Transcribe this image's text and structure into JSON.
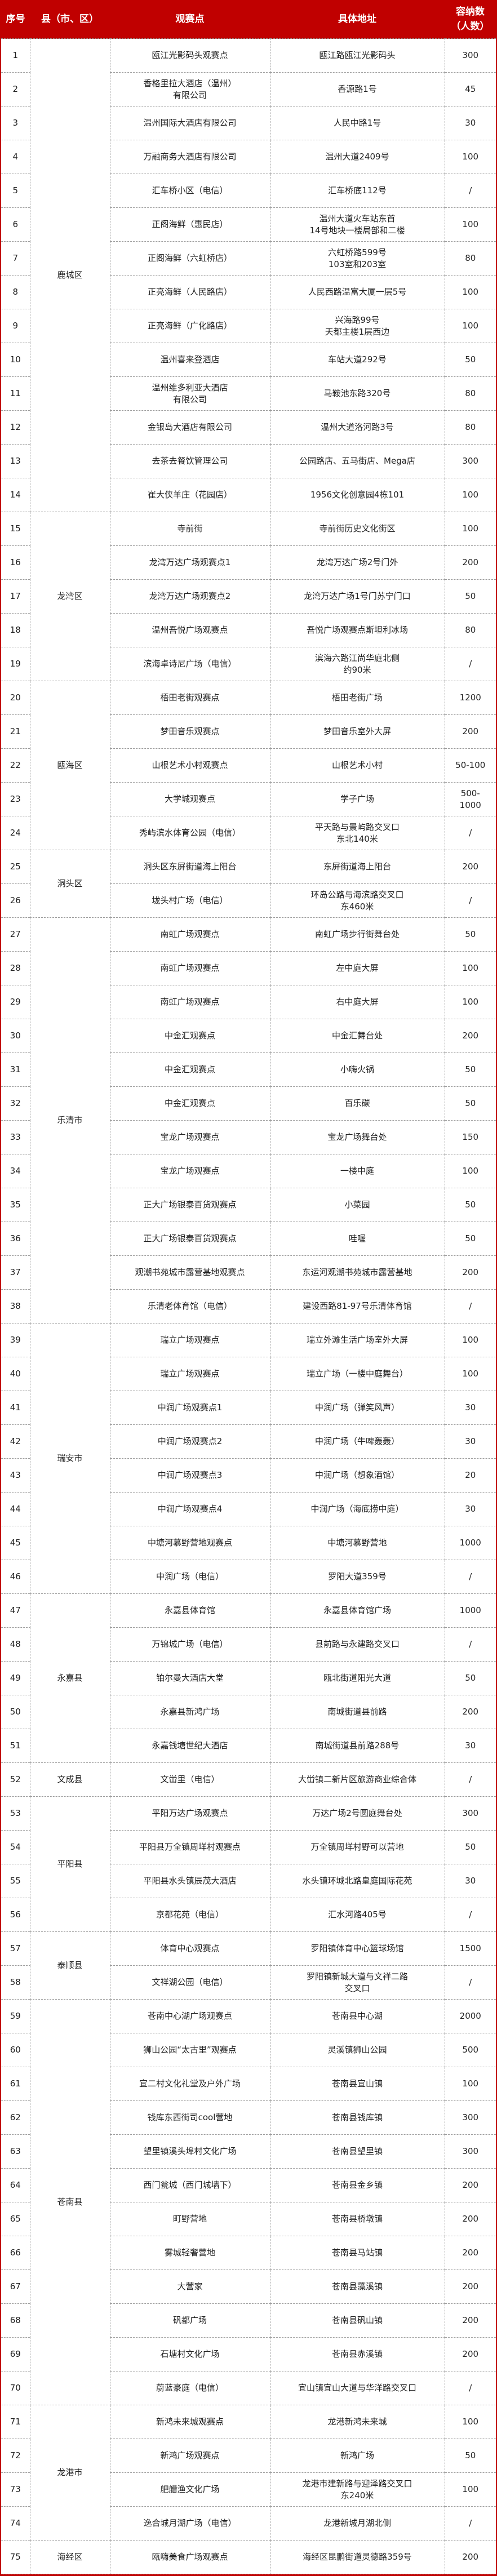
{
  "header": {
    "seq": "序号",
    "district": "县（市、区）",
    "venue": "观赛点",
    "address": "具体地址",
    "capacity": "容纳数\n（人数）"
  },
  "colors": {
    "header_bg": "#c00000",
    "header_text": "#ffffff",
    "border": "#9a9a9a"
  },
  "groups": [
    {
      "district": "鹿城区",
      "rows": [
        {
          "no": "1",
          "venue": "瓯江光影码头观赛点",
          "address": "瓯江路瓯江光影码头",
          "capacity": "300"
        },
        {
          "no": "2",
          "venue": "香格里拉大酒店（温州）\n有限公司",
          "address": "香源路1号",
          "capacity": "45"
        },
        {
          "no": "3",
          "venue": "温州国际大酒店有限公司",
          "address": "人民中路1号",
          "capacity": "30"
        },
        {
          "no": "4",
          "venue": "万融商务大酒店有限公司",
          "address": "温州大道2409号",
          "capacity": "100"
        },
        {
          "no": "5",
          "venue": "汇车桥小区（电信）",
          "address": "汇车桥底112号",
          "capacity": "/"
        },
        {
          "no": "6",
          "venue": "正阁海鲜（惠民店）",
          "address": "温州大道火车站东首\n14号地块一楼局部和二楼",
          "capacity": "100"
        },
        {
          "no": "7",
          "venue": "正阁海鲜（六虹桥店）",
          "address": "六虹桥路599号\n103室和203室",
          "capacity": "80"
        },
        {
          "no": "8",
          "venue": "正亮海鲜（人民路店）",
          "address": "人民西路温富大厦一层5号",
          "capacity": "100"
        },
        {
          "no": "9",
          "venue": "正亮海鲜（广化路店）",
          "address": "兴海路99号\n天都主楼1层西边",
          "capacity": "100"
        },
        {
          "no": "10",
          "venue": "温州喜来登酒店",
          "address": "车站大道292号",
          "capacity": "50"
        },
        {
          "no": "11",
          "venue": "温州维多利亚大酒店\n有限公司",
          "address": "马鞍池东路320号",
          "capacity": "80"
        },
        {
          "no": "12",
          "venue": "金银岛大酒店有限公司",
          "address": "温州大道洛河路3号",
          "capacity": "80"
        },
        {
          "no": "13",
          "venue": "去茶去餐饮管理公司",
          "address": "公园路店、五马街店、Mega店",
          "capacity": "300"
        },
        {
          "no": "14",
          "venue": "崔大侠羊庄（花园店）",
          "address": "1956文化创意园4栋101",
          "capacity": "100"
        }
      ]
    },
    {
      "district": "龙湾区",
      "rows": [
        {
          "no": "15",
          "venue": "寺前街",
          "address": "寺前街历史文化街区",
          "capacity": "100"
        },
        {
          "no": "16",
          "venue": "龙湾万达广场观赛点1",
          "address": "龙湾万达广场2号门外",
          "capacity": "200"
        },
        {
          "no": "17",
          "venue": "龙湾万达广场观赛点2",
          "address": "龙湾万达广场1号门苏宁门口",
          "capacity": "50"
        },
        {
          "no": "18",
          "venue": "温州吾悦广场观赛点",
          "address": "吾悦广场观赛点斯坦利冰场",
          "capacity": "80"
        },
        {
          "no": "19",
          "venue": "滨海卓诗尼广场（电信）",
          "address": "滨海六路江尚华庭北侧\n约90米",
          "capacity": "/"
        }
      ]
    },
    {
      "district": "瓯海区",
      "rows": [
        {
          "no": "20",
          "venue": "梧田老街观赛点",
          "address": "梧田老街广场",
          "capacity": "1200"
        },
        {
          "no": "21",
          "venue": "梦田音乐观赛点",
          "address": "梦田音乐室外大屏",
          "capacity": "200"
        },
        {
          "no": "22",
          "venue": "山根艺术小村观赛点",
          "address": "山根艺术小村",
          "capacity": "50-100"
        },
        {
          "no": "23",
          "venue": "大学城观赛点",
          "address": "学子广场",
          "capacity": "500-\n1000"
        },
        {
          "no": "24",
          "venue": "秀屿滨水体育公园（电信）",
          "address": "平天路与景屿路交叉口\n东北140米",
          "capacity": "/"
        }
      ]
    },
    {
      "district": "洞头区",
      "rows": [
        {
          "no": "25",
          "venue": "洞头区东屏街道海上阳台",
          "address": "东屏街道海上阳台",
          "capacity": "200"
        },
        {
          "no": "26",
          "venue": "垅头村广场（电信）",
          "address": "环岛公路与海滨路交叉口\n东460米",
          "capacity": "/"
        }
      ]
    },
    {
      "district": "乐清市",
      "rows": [
        {
          "no": "27",
          "venue": "南虹广场观赛点",
          "address": "南虹广场步行街舞台处",
          "capacity": "50"
        },
        {
          "no": "28",
          "venue": "南虹广场观赛点",
          "address": "左中庭大屏",
          "capacity": "100"
        },
        {
          "no": "29",
          "venue": "南虹广场观赛点",
          "address": "右中庭大屏",
          "capacity": "100"
        },
        {
          "no": "30",
          "venue": "中金汇观赛点",
          "address": "中金汇舞台处",
          "capacity": "200"
        },
        {
          "no": "31",
          "venue": "中金汇观赛点",
          "address": "小嗨火锅",
          "capacity": "50"
        },
        {
          "no": "32",
          "venue": "中金汇观赛点",
          "address": "百乐碳",
          "capacity": "50"
        },
        {
          "no": "33",
          "venue": "宝龙广场观赛点",
          "address": "宝龙广场舞台处",
          "capacity": "150"
        },
        {
          "no": "34",
          "venue": "宝龙广场观赛点",
          "address": "一楼中庭",
          "capacity": "100"
        },
        {
          "no": "35",
          "venue": "正大广场银泰百货观赛点",
          "address": "小菜园",
          "capacity": "50"
        },
        {
          "no": "36",
          "venue": "正大广场银泰百货观赛点",
          "address": "哇喔",
          "capacity": "50"
        },
        {
          "no": "37",
          "venue": "观潮书苑城市露营基地观赛点",
          "address": "东运河观潮书苑城市露营基地",
          "capacity": "200"
        },
        {
          "no": "38",
          "venue": "乐清老体育馆（电信）",
          "address": "建设西路81-97号乐清体育馆",
          "capacity": "/"
        }
      ]
    },
    {
      "district": "瑞安市",
      "rows": [
        {
          "no": "39",
          "venue": "瑞立广场观赛点",
          "address": "瑞立外滩生活广场室外大屏",
          "capacity": "100"
        },
        {
          "no": "40",
          "venue": "瑞立广场观赛点",
          "address": "瑞立广场（一楼中庭舞台）",
          "capacity": "100"
        },
        {
          "no": "41",
          "venue": "中润广场观赛点1",
          "address": "中润广场（弹笑风声）",
          "capacity": "30"
        },
        {
          "no": "42",
          "venue": "中润广场观赛点2",
          "address": "中润广场（牛啤轰轰）",
          "capacity": "30"
        },
        {
          "no": "43",
          "venue": "中润广场观赛点3",
          "address": "中润广场（想象酒馆）",
          "capacity": "20"
        },
        {
          "no": "44",
          "venue": "中润广场观赛点4",
          "address": "中润广场（海底捞中庭）",
          "capacity": "30"
        },
        {
          "no": "45",
          "venue": "中塘河慕野营地观赛点",
          "address": "中塘河慕野营地",
          "capacity": "1000"
        },
        {
          "no": "46",
          "venue": "中润广场（电信）",
          "address": "罗阳大道359号",
          "capacity": "/"
        }
      ]
    },
    {
      "district": "永嘉县",
      "rows": [
        {
          "no": "47",
          "venue": "永嘉县体育馆",
          "address": "永嘉县体育馆广场",
          "capacity": "1000"
        },
        {
          "no": "48",
          "venue": "万锦城广场（电信）",
          "address": "县前路与永建路交叉口",
          "capacity": "/"
        },
        {
          "no": "49",
          "venue": "铂尔曼大酒店大堂",
          "address": "瓯北街道阳光大道",
          "capacity": "50"
        },
        {
          "no": "50",
          "venue": "永嘉县新鸿广场",
          "address": "南城街道县前路",
          "capacity": "200"
        },
        {
          "no": "51",
          "venue": "永嘉钱塘世纪大酒店",
          "address": "南城街道县前路288号",
          "capacity": "30"
        }
      ]
    },
    {
      "district": "文成县",
      "rows": [
        {
          "no": "52",
          "venue": "文峃里（电信）",
          "address": "大峃镇二新片区旅游商业综合体",
          "capacity": "/"
        }
      ]
    },
    {
      "district": "平阳县",
      "rows": [
        {
          "no": "53",
          "venue": "平阳万达广场观赛点",
          "address": "万达广场2号圆庭舞台处",
          "capacity": "300"
        },
        {
          "no": "54",
          "venue": "平阳县万全镇周垟村观赛点",
          "address": "万全镇周垟村野可以营地",
          "capacity": "50"
        },
        {
          "no": "55",
          "venue": "平阳县水头镇辰茂大酒店",
          "address": "水头镇环城北路皇庭国际花苑",
          "capacity": "30"
        },
        {
          "no": "56",
          "venue": "京都花苑（电信）",
          "address": "汇水河路405号",
          "capacity": "/"
        }
      ]
    },
    {
      "district": "泰顺县",
      "rows": [
        {
          "no": "57",
          "venue": "体育中心观赛点",
          "address": "罗阳镇体育中心篮球场馆",
          "capacity": "1500"
        },
        {
          "no": "58",
          "venue": "文祥湖公园（电信）",
          "address": "罗阳镇新城大道与文祥二路\n交叉口",
          "capacity": "/"
        }
      ]
    },
    {
      "district": "苍南县",
      "rows": [
        {
          "no": "59",
          "venue": "苍南中心湖广场观赛点",
          "address": "苍南县中心湖",
          "capacity": "2000"
        },
        {
          "no": "60",
          "venue": "狮山公园“太古里”观赛点",
          "address": "灵溪镇狮山公园",
          "capacity": "500"
        },
        {
          "no": "61",
          "venue": "宜二村文化礼堂及户外广场",
          "address": "苍南县宜山镇",
          "capacity": "100"
        },
        {
          "no": "62",
          "venue": "钱库东西街司cool营地",
          "address": "苍南县钱库镇",
          "capacity": "300"
        },
        {
          "no": "63",
          "venue": "望里镇溪头埠村文化广场",
          "address": "苍南县望里镇",
          "capacity": "300"
        },
        {
          "no": "64",
          "venue": "西门瓮城（西门城墙下）",
          "address": "苍南县金乡镇",
          "capacity": "200"
        },
        {
          "no": "65",
          "venue": "町野营地",
          "address": "苍南县桥墩镇",
          "capacity": "200"
        },
        {
          "no": "66",
          "venue": "雾城轻奢营地",
          "address": "苍南县马站镇",
          "capacity": "200"
        },
        {
          "no": "67",
          "venue": "大营家",
          "address": "苍南县藻溪镇",
          "capacity": "200"
        },
        {
          "no": "68",
          "venue": "矾都广场",
          "address": "苍南县矾山镇",
          "capacity": "200"
        },
        {
          "no": "69",
          "venue": "石塘村文化广场",
          "address": "苍南县赤溪镇",
          "capacity": "200"
        },
        {
          "no": "70",
          "venue": "蔚蓝豪庭（电信）",
          "address": "宜山镇宜山大道与华洋路交叉口",
          "capacity": "/"
        }
      ]
    },
    {
      "district": "龙港市",
      "rows": [
        {
          "no": "71",
          "venue": "新鸿未来城观赛点",
          "address": "龙港新鸿未来城",
          "capacity": "100"
        },
        {
          "no": "72",
          "venue": "新鸿广场观赛点",
          "address": "新鸿广场",
          "capacity": "50"
        },
        {
          "no": "73",
          "venue": "舥艚渔文化广场",
          "address": "龙港市建新路与迎泽路交叉口\n东240米",
          "capacity": "100"
        },
        {
          "no": "74",
          "venue": "逸合城月湖广场（电信）",
          "address": "龙港新城月湖北侧",
          "capacity": "/"
        }
      ]
    },
    {
      "district": "海经区",
      "rows": [
        {
          "no": "75",
          "venue": "瓯嗨美食广场观赛点",
          "address": "海经区昆鹏街道灵德路359号",
          "capacity": "200"
        }
      ]
    }
  ]
}
